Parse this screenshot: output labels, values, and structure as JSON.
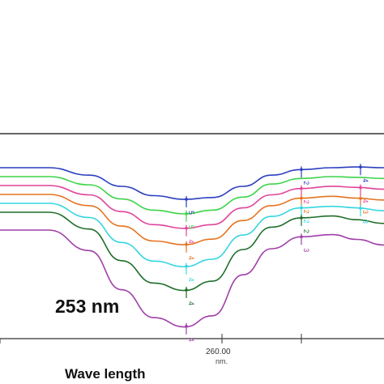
{
  "chart_data": {
    "type": "line",
    "title": "",
    "xlabel": "Wave length",
    "ylabel": "",
    "x_tick_labels": [
      "260.00"
    ],
    "x_unit": "nm.",
    "annotation": "253 nm",
    "grid": false,
    "legend": "none",
    "series": [
      {
        "color": "#2b3fbf",
        "label_marks": [
          "5",
          "2",
          "4"
        ],
        "values": [
          0,
          0,
          0.2,
          0.5,
          0.75,
          0.85,
          0.8,
          0.5,
          0.2,
          0.05,
          0,
          -0.02,
          0
        ]
      },
      {
        "color": "#3ed34a",
        "label_marks": [
          "5"
        ],
        "values": [
          0,
          0,
          0.22,
          0.6,
          0.9,
          1.0,
          0.9,
          0.55,
          0.2,
          0.05,
          0,
          0.02,
          0.05
        ]
      },
      {
        "color": "#e0449a",
        "label_marks": [
          "4",
          "2",
          "4"
        ],
        "values": [
          0,
          0,
          0.25,
          0.7,
          1.05,
          1.15,
          1.05,
          0.6,
          0.25,
          0.08,
          0.02,
          0.05,
          0.1
        ]
      },
      {
        "color": "#e5731f",
        "label_marks": [
          "4",
          "2",
          "3"
        ],
        "values": [
          0,
          0,
          0.3,
          0.85,
          1.25,
          1.35,
          1.2,
          0.7,
          0.3,
          0.1,
          0.05,
          0.1,
          0.15
        ]
      },
      {
        "color": "#35d5e0",
        "label_marks": [
          "4",
          "2",
          "3"
        ],
        "values": [
          0,
          0,
          0.38,
          1.05,
          1.55,
          1.7,
          1.5,
          0.85,
          0.35,
          0.12,
          0.08,
          0.12,
          0.2
        ]
      },
      {
        "color": "#1f6e2a",
        "label_marks": [
          "4",
          "2"
        ],
        "values": [
          0,
          0,
          0.45,
          1.3,
          1.9,
          2.1,
          1.85,
          1.0,
          0.4,
          0.15,
          0.1,
          0.2,
          0.3
        ]
      },
      {
        "color": "#a03fa8",
        "label_marks": [
          "4",
          "3"
        ],
        "values": [
          0,
          0,
          0.55,
          1.6,
          2.35,
          2.6,
          2.3,
          1.2,
          0.5,
          0.18,
          0.12,
          0.25,
          0.4
        ]
      }
    ]
  }
}
